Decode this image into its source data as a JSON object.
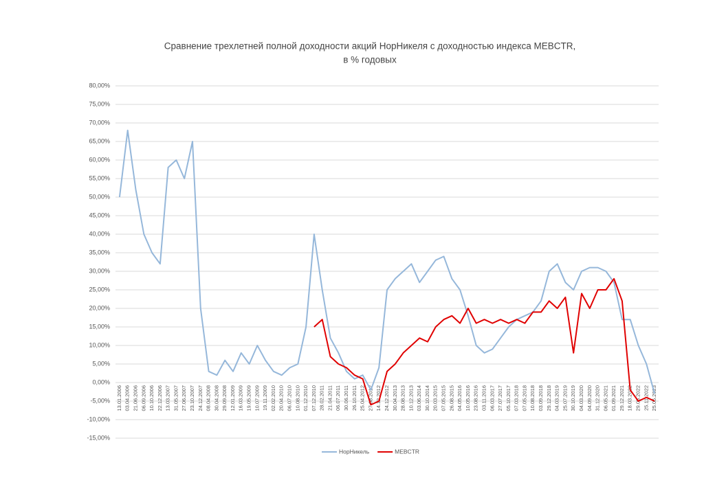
{
  "chart_data": {
    "type": "line",
    "title": "Сравнение трехлетней полной доходности акций НорНикеля с доходностью индекса MEBCTR,",
    "subtitle": "в % годовых",
    "categories": [
      "13.01.2006",
      "03.04.2006",
      "21.06.2006",
      "06.09.2006",
      "10.10.2006",
      "22.12.2006",
      "13.03.2007",
      "31.05.2007",
      "27.06.2007",
      "23.10.2007",
      "24.12.2007",
      "08.04.2008",
      "30.04.2008",
      "29.09.2008",
      "12.01.2009",
      "16.03.2009",
      "19.05.2009",
      "10.07.2009",
      "19.11.2009",
      "02.02.2010",
      "20.04.2010",
      "06.07.2010",
      "10.08.2010",
      "01.12.2010",
      "07.12.2010",
      "28.02.2011",
      "21.04.2011",
      "06.07.2011",
      "30.06.2011",
      "26.10.2011",
      "25.04.2012",
      "27.08.2012",
      "14.12.2012",
      "24.12.2012",
      "30.04.2013",
      "28.08.2013",
      "10.12.2013",
      "03.06.2014",
      "30.10.2014",
      "20.03.2015",
      "07.05.2015",
      "26.08.2015",
      "04.05.2016",
      "10.05.2016",
      "23.08.2016",
      "03.11.2016",
      "06.03.2017",
      "27.07.2017",
      "05.10.2017",
      "07.03.2018",
      "07.05.2018",
      "10.08.2018",
      "03.09.2018",
      "29.12.2018",
      "04.03.2019",
      "25.07.2019",
      "30.10.2019",
      "04.03.2020",
      "04.09.2020",
      "31.12.2020",
      "06.05.2021",
      "01.09.2021",
      "29.12.2021",
      "18.03.2022",
      "29.03.2022",
      "25.11.2022",
      "25.05.2023"
    ],
    "series": [
      {
        "name": "НорНикель",
        "color": "#95b7da",
        "values": [
          50,
          68,
          52,
          40,
          35,
          32,
          58,
          60,
          55,
          65,
          20,
          3,
          2,
          6,
          3,
          8,
          5,
          10,
          6,
          3,
          2,
          4,
          5,
          15,
          40,
          25,
          12,
          8,
          3,
          1,
          2,
          -2,
          4,
          25,
          28,
          30,
          32,
          27,
          30,
          33,
          34,
          28,
          25,
          18,
          10,
          8,
          9,
          12,
          15,
          17,
          18,
          19,
          22,
          30,
          32,
          27,
          25,
          30,
          31,
          31,
          30,
          27,
          17,
          17,
          10,
          5,
          -3
        ]
      },
      {
        "name": "MEBCTR",
        "color": "#e00000",
        "values": [
          null,
          null,
          null,
          null,
          null,
          null,
          null,
          null,
          null,
          null,
          null,
          null,
          null,
          null,
          null,
          null,
          null,
          null,
          null,
          null,
          null,
          null,
          null,
          null,
          15,
          17,
          7,
          5,
          4,
          2,
          1,
          -6,
          -5,
          3,
          5,
          8,
          10,
          12,
          11,
          15,
          17,
          18,
          16,
          20,
          16,
          17,
          16,
          17,
          16,
          17,
          16,
          19,
          19,
          22,
          20,
          23,
          8,
          24,
          20,
          25,
          25,
          28,
          22,
          -2,
          -5,
          -4,
          -5
        ]
      }
    ],
    "ylim": [
      -15,
      80
    ],
    "yticks": [
      {
        "value": -15,
        "label": "-15,00%"
      },
      {
        "value": -10,
        "label": "-10,00%"
      },
      {
        "value": -5,
        "label": "-5,00%"
      },
      {
        "value": 0,
        "label": "0,00%"
      },
      {
        "value": 5,
        "label": "5,00%"
      },
      {
        "value": 10,
        "label": "10,00%"
      },
      {
        "value": 15,
        "label": "15,00%"
      },
      {
        "value": 20,
        "label": "20,00%"
      },
      {
        "value": 25,
        "label": "25,00%"
      },
      {
        "value": 30,
        "label": "30,00%"
      },
      {
        "value": 35,
        "label": "35,00%"
      },
      {
        "value": 40,
        "label": "40,00%"
      },
      {
        "value": 45,
        "label": "45,00%"
      },
      {
        "value": 50,
        "label": "50,00%"
      },
      {
        "value": 55,
        "label": "55,00%"
      },
      {
        "value": 60,
        "label": "60,00%"
      },
      {
        "value": 65,
        "label": "65,00%"
      },
      {
        "value": 70,
        "label": "70,00%"
      },
      {
        "value": 75,
        "label": "75,00%"
      },
      {
        "value": 80,
        "label": "80,00%"
      }
    ],
    "grid": true,
    "legend": "bottom"
  }
}
